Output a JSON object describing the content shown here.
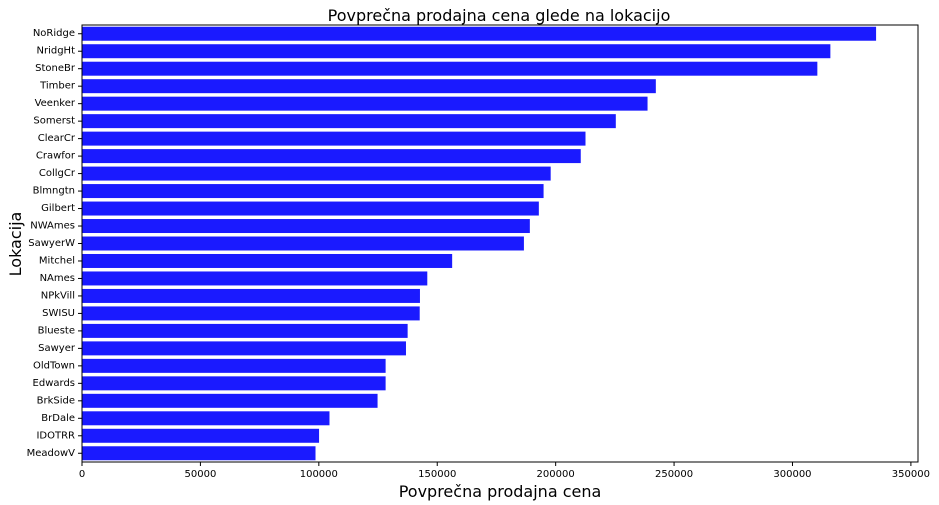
{
  "chart_data": {
    "type": "bar",
    "orientation": "horizontal",
    "title": "Povprečna prodajna cena glede na lokacijo",
    "xlabel": "Povprečna prodajna cena",
    "ylabel": "Lokacija",
    "bar_color": "#1a1aff",
    "xlim": [
      0,
      353000
    ],
    "xticks": [
      0,
      50000,
      100000,
      150000,
      200000,
      250000,
      300000,
      350000
    ],
    "xtick_labels": [
      "0",
      "50000",
      "100000",
      "150000",
      "200000",
      "250000",
      "300000",
      "350000"
    ],
    "grid": false,
    "categories": [
      "NoRidge",
      "NridgHt",
      "StoneBr",
      "Timber",
      "Veenker",
      "Somerst",
      "ClearCr",
      "Crawfor",
      "CollgCr",
      "Blmngtn",
      "Gilbert",
      "NWAmes",
      "SawyerW",
      "Mitchel",
      "NAmes",
      "NPkVill",
      "SWISU",
      "Blueste",
      "Sawyer",
      "OldTown",
      "Edwards",
      "BrkSide",
      "BrDale",
      "IDOTRR",
      "MeadowV"
    ],
    "values": [
      335300,
      316000,
      310500,
      242300,
      238800,
      225400,
      212600,
      210600,
      197900,
      194900,
      192900,
      189100,
      186600,
      156300,
      145800,
      142700,
      142600,
      137500,
      136800,
      128200,
      128200,
      124800,
      104500,
      100100,
      98600
    ]
  }
}
